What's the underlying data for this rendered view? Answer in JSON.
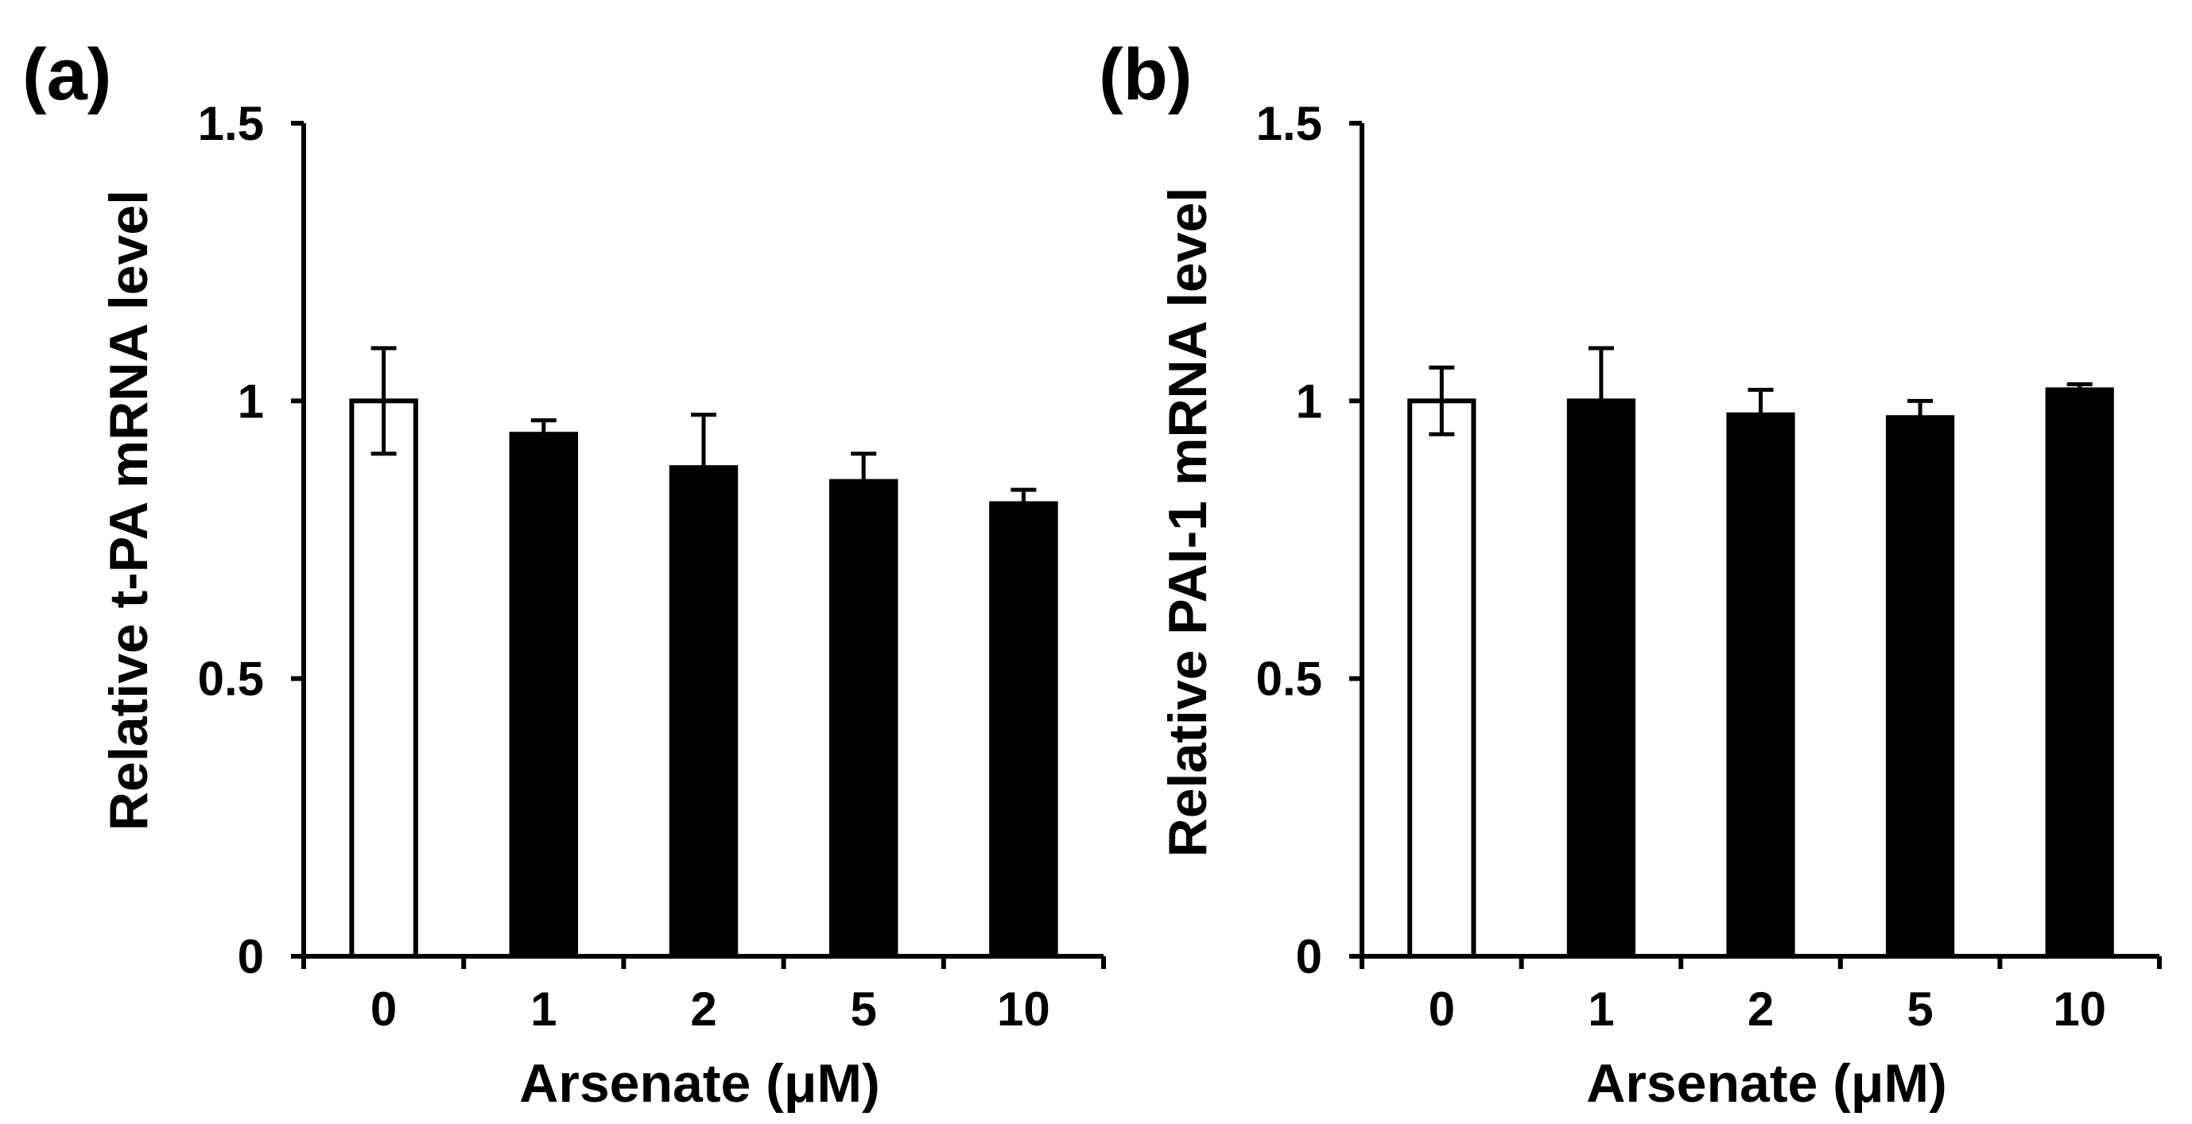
{
  "chart_data": [
    {
      "type": "bar",
      "panel_label": "(a)",
      "title": "",
      "categories": [
        "0",
        "1",
        "2",
        "5",
        "10"
      ],
      "values": [
        1.0,
        0.94,
        0.88,
        0.855,
        0.815
      ],
      "errors": [
        0.095,
        0.025,
        0.095,
        0.05,
        0.025
      ],
      "bar_colors": [
        "#ffffff",
        "#000000",
        "#000000",
        "#000000",
        "#000000"
      ],
      "xlabel": "Arsenate (μM)",
      "ylabel": "Relative t-PA mRNA level",
      "ylim": [
        0,
        1.5
      ],
      "yticks": [
        0,
        0.5,
        1,
        1.5
      ],
      "ytick_labels": [
        "0",
        "0.5",
        "1",
        "1.5"
      ],
      "grid": false
    },
    {
      "type": "bar",
      "panel_label": "(b)",
      "title": "",
      "categories": [
        "0",
        "1",
        "2",
        "5",
        "10"
      ],
      "values": [
        1.0,
        1.0,
        0.975,
        0.97,
        1.02
      ],
      "errors": [
        0.06,
        0.095,
        0.045,
        0.03,
        0.01
      ],
      "bar_colors": [
        "#ffffff",
        "#000000",
        "#000000",
        "#000000",
        "#000000"
      ],
      "xlabel": "Arsenate (μM)",
      "ylabel": "Relative PAI-1 mRNA level",
      "ylim": [
        0,
        1.5
      ],
      "yticks": [
        0,
        0.5,
        1,
        1.5
      ],
      "ytick_labels": [
        "0",
        "0.5",
        "1",
        "1.5"
      ],
      "grid": false
    }
  ]
}
